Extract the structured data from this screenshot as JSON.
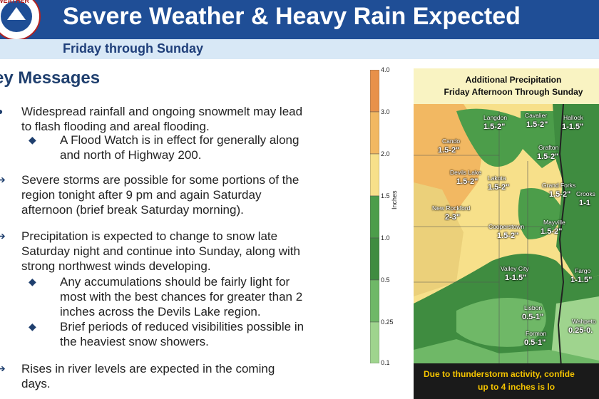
{
  "header": {
    "title": "Severe Weather & Heavy Rain Expected",
    "subtitle": "Friday through Sunday",
    "logo_text": "WEATHER SERVICE"
  },
  "key_messages": {
    "heading": "ey Messages",
    "items": [
      {
        "lines": [
          "Widespread rainfall and ongoing snowmelt may lead",
          "to flash flooding and areal flooding."
        ]
      },
      {
        "lines": [
          "A Flood Watch is in effect for generally along",
          "and north of Highway 200."
        ]
      },
      {
        "lines": [
          "Severe storms are possible for some portions of the",
          "region tonight after 9 pm and again Saturday",
          "afternoon (brief break Saturday morning)."
        ]
      },
      {
        "lines": [
          "Precipitation is expected to change to snow late",
          "Saturday night and continue into Sunday, along with",
          "strong northwest winds developing."
        ]
      },
      {
        "lines": [
          "Any accumulations should be fairly light for",
          "most with the best chances for greater than 2",
          "inches across the Devils Lake region."
        ]
      },
      {
        "lines": [
          "Brief periods of reduced visibilities possible in",
          "the heaviest snow showers."
        ]
      },
      {
        "lines": [
          "Rises in river levels are expected in the coming",
          "days."
        ]
      }
    ]
  },
  "scale": {
    "ticks": [
      "4.0",
      "3.0",
      "2.0",
      "1.5",
      "1.0",
      "0.5",
      "0.25",
      "0.1"
    ],
    "colors": [
      "#e8914a",
      "#f2b862",
      "#f7e08a",
      "#fbf6ad",
      "#4c9d4a",
      "#6fb867",
      "#9fd48e"
    ],
    "unit": "Inches"
  },
  "map": {
    "title_line1": "Additional Precipitation",
    "title_line2": "Friday Afternoon Through Sunday",
    "cities": [
      {
        "name": "Langdon",
        "amount": "1.5-2\""
      },
      {
        "name": "Cavalier",
        "amount": "1.5-2\""
      },
      {
        "name": "Hallock",
        "amount": "1-1.5\""
      },
      {
        "name": "Cando",
        "amount": "1.5-2\""
      },
      {
        "name": "Grafton",
        "amount": "1.5-2\""
      },
      {
        "name": "Devils Lake",
        "amount": "1.5-2\""
      },
      {
        "name": "Lakota",
        "amount": "1.5-2\""
      },
      {
        "name": "Grand Forks",
        "amount": "1.5-2\""
      },
      {
        "name": "Crooks",
        "amount": "1-1"
      },
      {
        "name": "New Rockford",
        "amount": "2-3\""
      },
      {
        "name": "Cooperstown",
        "amount": "1.5-2\""
      },
      {
        "name": "Mayville",
        "amount": "1.5-2\""
      },
      {
        "name": "Valley City",
        "amount": "1-1.5\""
      },
      {
        "name": "Fargo",
        "amount": "1-1.5\""
      },
      {
        "name": "Lisbon",
        "amount": "0.5-1\""
      },
      {
        "name": "Wahpeto",
        "amount": "0.25-0."
      },
      {
        "name": "Forman",
        "amount": "0.5-1\""
      }
    ],
    "footer_line1": "Due to thunderstorm activity, confide",
    "footer_line2": "up to 4 inches is lo"
  }
}
